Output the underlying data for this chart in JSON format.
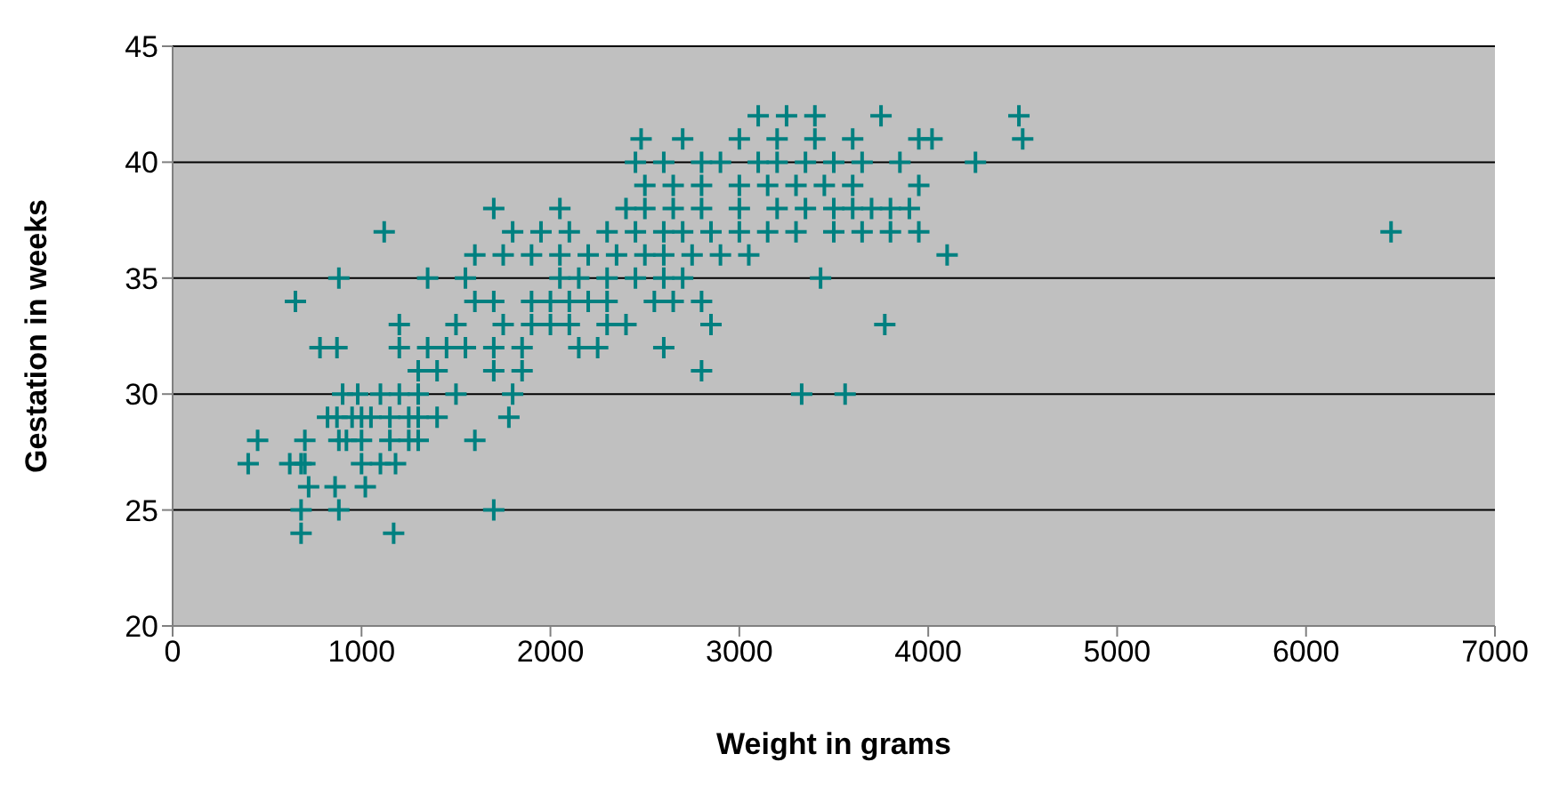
{
  "chart_data": {
    "type": "scatter",
    "xlabel": "Weight in grams",
    "ylabel": "Gestation in weeks",
    "xlim": [
      0,
      7000
    ],
    "xticks": [
      0,
      1000,
      2000,
      3000,
      4000,
      5000,
      6000,
      7000
    ],
    "ylim": [
      20,
      45
    ],
    "yticks": [
      20,
      25,
      30,
      35,
      40,
      45
    ],
    "grid": "y",
    "marker": "cross",
    "series": [
      {
        "color": "#008080",
        "x": [
          680,
          1170,
          680,
          880,
          1700,
          720,
          1020,
          860,
          400,
          620,
          680,
          700,
          1000,
          1100,
          1180,
          450,
          700,
          880,
          920,
          1000,
          1150,
          1250,
          1300,
          1600,
          820,
          870,
          950,
          1000,
          1050,
          1150,
          1250,
          1300,
          1400,
          1780,
          900,
          980,
          1100,
          1200,
          1300,
          1500,
          1800,
          3330,
          3560,
          1300,
          1400,
          1700,
          1850,
          2800,
          780,
          870,
          1200,
          1350,
          1450,
          1550,
          1700,
          1850,
          2150,
          2250,
          2600,
          1200,
          1500,
          1750,
          1900,
          2000,
          2100,
          2300,
          2400,
          2850,
          3770,
          650,
          1600,
          1700,
          1900,
          2000,
          2100,
          2200,
          2300,
          2550,
          2650,
          2800,
          880,
          1350,
          1550,
          2050,
          2150,
          2300,
          2450,
          2600,
          2700,
          3430,
          1600,
          1750,
          1900,
          2050,
          2200,
          2350,
          2500,
          2600,
          2750,
          2900,
          3050,
          4100,
          1120,
          1800,
          1950,
          2100,
          2300,
          2450,
          2600,
          2700,
          2850,
          3000,
          3150,
          3300,
          3500,
          3650,
          3800,
          3950,
          6450,
          1700,
          2050,
          2400,
          2500,
          2650,
          2800,
          3000,
          3200,
          3350,
          3500,
          3600,
          3700,
          3800,
          3900,
          2500,
          2650,
          2800,
          3000,
          3150,
          3300,
          3450,
          3600,
          3950,
          2450,
          2600,
          2800,
          2900,
          3100,
          3200,
          3350,
          3500,
          3650,
          3850,
          4250,
          2480,
          2700,
          3000,
          3200,
          3400,
          3600,
          3950,
          4020,
          4500,
          3100,
          3250,
          3400,
          3750,
          4480
        ],
        "values": [
          24,
          24,
          25,
          25,
          25,
          26,
          26,
          26,
          27,
          27,
          27,
          27,
          27,
          27,
          27,
          28,
          28,
          28,
          28,
          28,
          28,
          28,
          28,
          28,
          29,
          29,
          29,
          29,
          29,
          29,
          29,
          29,
          29,
          29,
          30,
          30,
          30,
          30,
          30,
          30,
          30,
          30,
          30,
          31,
          31,
          31,
          31,
          31,
          32,
          32,
          32,
          32,
          32,
          32,
          32,
          32,
          32,
          32,
          32,
          33,
          33,
          33,
          33,
          33,
          33,
          33,
          33,
          33,
          33,
          34,
          34,
          34,
          34,
          34,
          34,
          34,
          34,
          34,
          34,
          34,
          35,
          35,
          35,
          35,
          35,
          35,
          35,
          35,
          35,
          35,
          36,
          36,
          36,
          36,
          36,
          36,
          36,
          36,
          36,
          36,
          36,
          36,
          37,
          37,
          37,
          37,
          37,
          37,
          37,
          37,
          37,
          37,
          37,
          37,
          37,
          37,
          37,
          37,
          37,
          38,
          38,
          38,
          38,
          38,
          38,
          38,
          38,
          38,
          38,
          38,
          38,
          38,
          38,
          39,
          39,
          39,
          39,
          39,
          39,
          39,
          39,
          39,
          40,
          40,
          40,
          40,
          40,
          40,
          40,
          40,
          40,
          40,
          40,
          41,
          41,
          41,
          41,
          41,
          41,
          41,
          41,
          41,
          42,
          42,
          42,
          42,
          42
        ]
      }
    ]
  }
}
